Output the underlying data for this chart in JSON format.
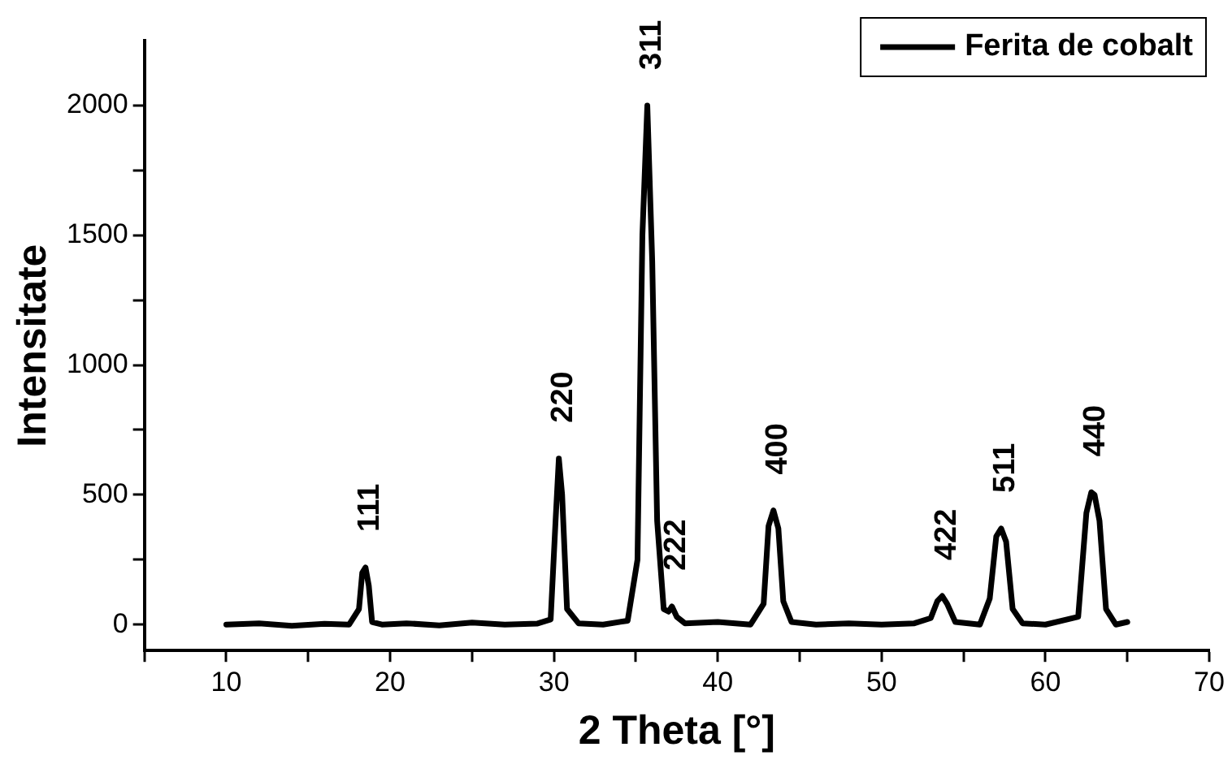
{
  "chart_data": {
    "type": "line",
    "xlabel": "2 Theta [°]",
    "ylabel": "Intensitate",
    "x": [
      10,
      12,
      14,
      16,
      17.5,
      18.1,
      18.3,
      18.5,
      18.7,
      18.9,
      19.5,
      21,
      23,
      25,
      27,
      29,
      29.8,
      30.1,
      30.3,
      30.5,
      30.8,
      31.5,
      33,
      34.5,
      35.1,
      35.4,
      35.7,
      36.0,
      36.3,
      36.7,
      37.0,
      37.2,
      37.5,
      38,
      40,
      42,
      42.8,
      43.1,
      43.4,
      43.7,
      44.0,
      44.5,
      46,
      48,
      50,
      52,
      53.0,
      53.4,
      53.7,
      54.0,
      54.5,
      56,
      56.6,
      57.0,
      57.3,
      57.6,
      58.0,
      58.6,
      60,
      62.0,
      62.5,
      62.8,
      63.0,
      63.3,
      63.7,
      64.3,
      65
    ],
    "series": [
      {
        "name": "Ferita de cobalt",
        "color": "#000000",
        "values": [
          0,
          5,
          -5,
          3,
          0,
          60,
          200,
          220,
          150,
          10,
          0,
          5,
          -3,
          8,
          0,
          4,
          20,
          400,
          640,
          500,
          60,
          5,
          0,
          15,
          250,
          1500,
          2000,
          1400,
          400,
          60,
          50,
          70,
          30,
          5,
          10,
          0,
          80,
          380,
          440,
          370,
          90,
          10,
          0,
          5,
          0,
          5,
          25,
          90,
          110,
          80,
          10,
          0,
          100,
          340,
          370,
          320,
          60,
          5,
          0,
          30,
          430,
          510,
          500,
          400,
          60,
          0,
          10
        ]
      }
    ],
    "xlim": [
      5,
      70
    ],
    "xticks": [
      {
        "value": 5,
        "label": null
      },
      10,
      {
        "value": 15,
        "label": null
      },
      20,
      {
        "value": 25,
        "label": null
      },
      30,
      {
        "value": 35,
        "label": null
      },
      40,
      {
        "value": 45,
        "label": null
      },
      50,
      {
        "value": 55,
        "label": null
      },
      60,
      {
        "value": 65,
        "label": null
      },
      70
    ],
    "ylim": [
      -100,
      2250
    ],
    "yticks": [
      0,
      {
        "value": 250,
        "label": null
      },
      500,
      {
        "value": 750,
        "label": null
      },
      1000,
      {
        "value": 1250,
        "label": null
      },
      1500,
      {
        "value": 1750,
        "label": null
      },
      2000
    ],
    "annotations": [
      {
        "text": "111",
        "x": 18.5,
        "y": 220
      },
      {
        "text": "220",
        "x": 30.3,
        "y": 640
      },
      {
        "text": "311",
        "x": 35.7,
        "y": 2000
      },
      {
        "text": "222",
        "x": 37.2,
        "y": 70
      },
      {
        "text": "400",
        "x": 43.4,
        "y": 440
      },
      {
        "text": "422",
        "x": 53.7,
        "y": 110
      },
      {
        "text": "511",
        "x": 57.3,
        "y": 370
      },
      {
        "text": "440",
        "x": 62.8,
        "y": 510
      }
    ],
    "grid": false,
    "legend": "top right",
    "marker": "none",
    "line_style": "solid"
  }
}
